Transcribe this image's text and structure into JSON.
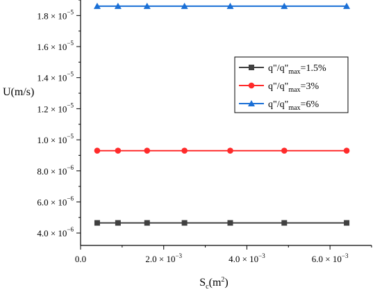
{
  "chart_data": {
    "type": "line",
    "xlabel": "S",
    "xlabel_sub": "c",
    "xlabel_unit_pre": "(m",
    "xlabel_unit_sup": "2",
    "xlabel_unit_post": ")",
    "ylabel": "U(m/s)",
    "xlim": [
      0,
      0.007
    ],
    "ylim": [
      3.2e-06,
      1.9e-05
    ],
    "x_ticks": [
      {
        "value": 0,
        "mant": "0.0",
        "exp": ""
      },
      {
        "value": 0.002,
        "mant": "2.0 × 10",
        "exp": "−3"
      },
      {
        "value": 0.004,
        "mant": "4.0 × 10",
        "exp": "−3"
      },
      {
        "value": 0.006,
        "mant": "6.0 × 10",
        "exp": "−3"
      }
    ],
    "y_ticks": [
      {
        "value": 4e-06,
        "mant": "4.0 × 10",
        "exp": "−6"
      },
      {
        "value": 6e-06,
        "mant": "6.0 × 10",
        "exp": "−6"
      },
      {
        "value": 8e-06,
        "mant": "8.0 × 10",
        "exp": "−6"
      },
      {
        "value": 1e-05,
        "mant": "1.0 × 10",
        "exp": "−5"
      },
      {
        "value": 1.2e-05,
        "mant": "1.2 × 10",
        "exp": "−5"
      },
      {
        "value": 1.4e-05,
        "mant": "1.4 × 10",
        "exp": "−5"
      },
      {
        "value": 1.6e-05,
        "mant": "1.6 × 10",
        "exp": "−5"
      },
      {
        "value": 1.8e-05,
        "mant": "1.8 × 10",
        "exp": "−5"
      }
    ],
    "x": [
      0.0004,
      0.0009,
      0.0016,
      0.0025,
      0.0036,
      0.0049,
      0.0064
    ],
    "series": [
      {
        "name_pre": "q\"/q\"",
        "name_sub": "max",
        "name_post": "=1.5%",
        "color": "#404040",
        "marker": "square",
        "values": [
          4.65e-06,
          4.65e-06,
          4.65e-06,
          4.65e-06,
          4.65e-06,
          4.65e-06,
          4.65e-06
        ]
      },
      {
        "name_pre": "q\"/q\"",
        "name_sub": "max",
        "name_post": "=3%",
        "color": "#ff2a2a",
        "marker": "circle",
        "values": [
          9.3e-06,
          9.3e-06,
          9.3e-06,
          9.3e-06,
          9.3e-06,
          9.3e-06,
          9.3e-06
        ]
      },
      {
        "name_pre": "q\"/q\"",
        "name_sub": "max",
        "name_post": "=6%",
        "color": "#1a6fd6",
        "marker": "triangle",
        "values": [
          1.86e-05,
          1.86e-05,
          1.86e-05,
          1.86e-05,
          1.86e-05,
          1.86e-05,
          1.86e-05
        ]
      }
    ],
    "legend_position": "right",
    "grid": false
  }
}
